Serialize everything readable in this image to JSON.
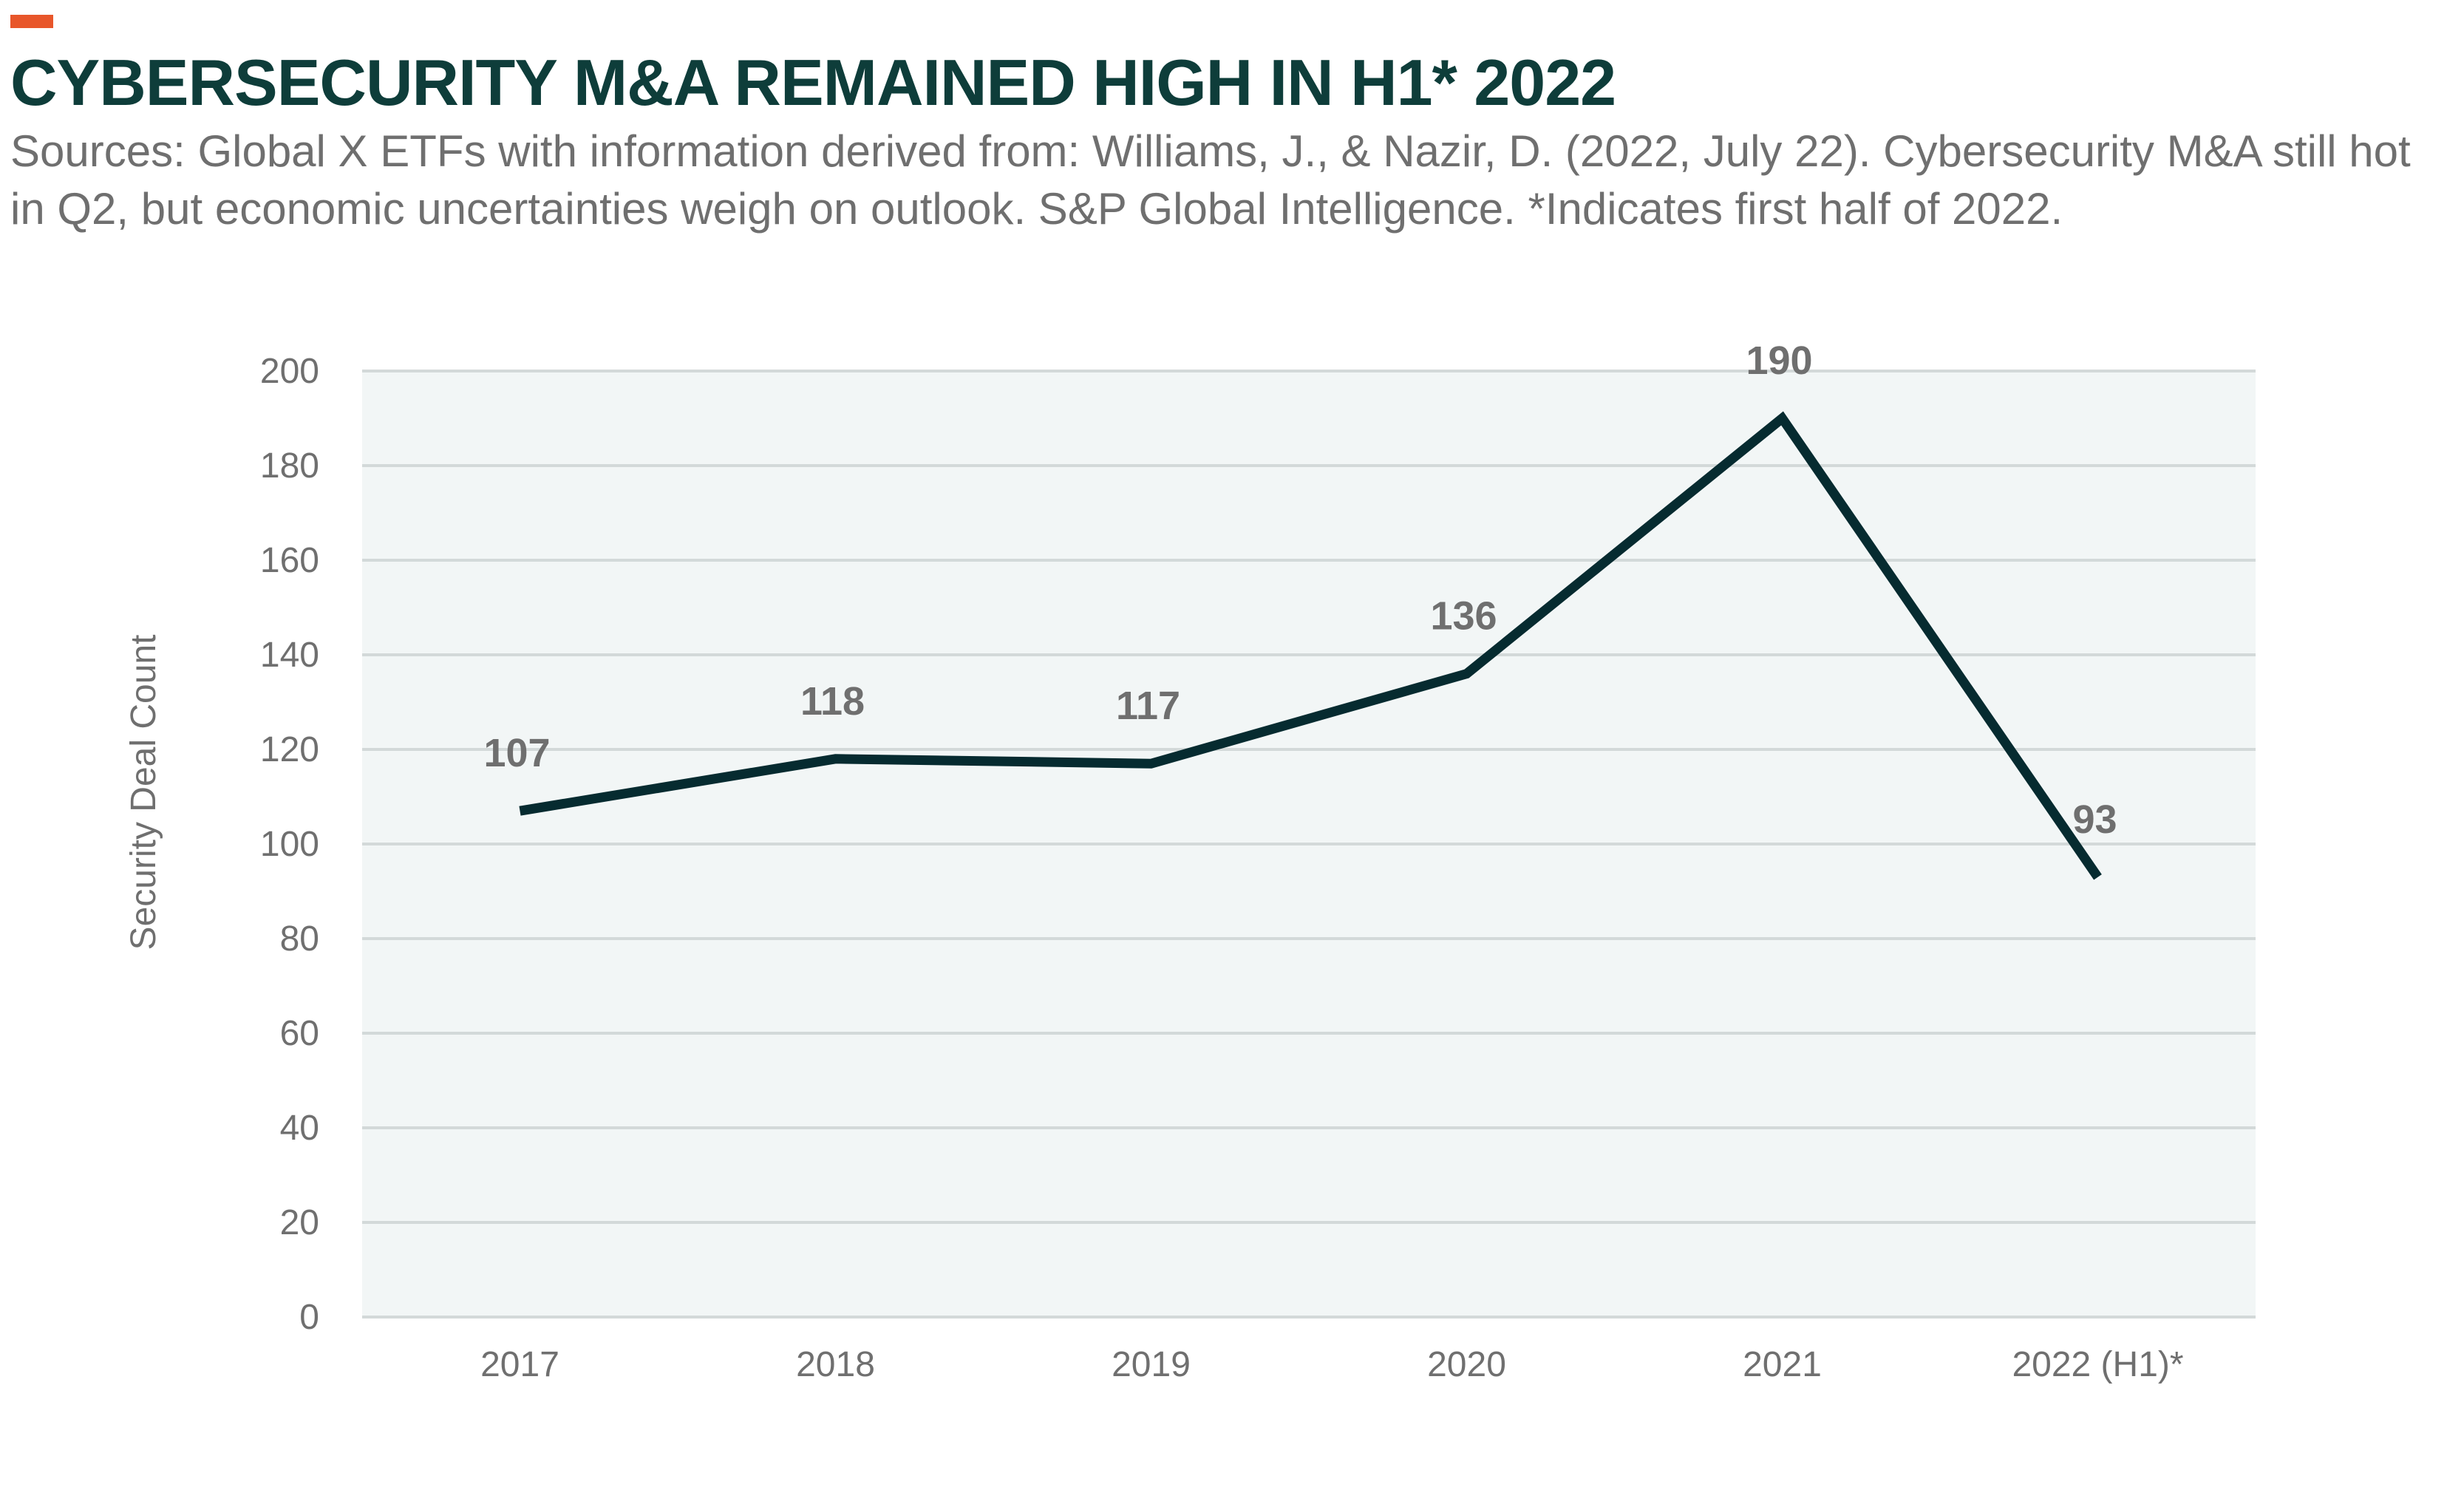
{
  "colors": {
    "accent": "#e8562a",
    "title": "#0e3d3a",
    "line": "#062b30",
    "plot_background": "#f2f6f6",
    "gridline": "#d3d9d9",
    "text_muted": "#6f6f6f"
  },
  "header": {
    "title": "CYBERSECURITY M&A REMAINED HIGH IN H1* 2022",
    "subtitle": "Sources: Global X ETFs with information derived from: Williams, J., & Nazir, D. (2022, July 22). Cybersecurity M&A still hot in Q2, but economic uncertainties weigh on outlook. S&P Global Intelligence. *Indicates first half of 2022."
  },
  "chart_data": {
    "type": "line",
    "categories": [
      "2017",
      "2018",
      "2019",
      "2020",
      "2021",
      "2022 (H1)*"
    ],
    "series": [
      {
        "values": [
          107,
          118,
          117,
          136,
          190,
          93
        ],
        "data_labels": [
          "107",
          "118",
          "117",
          "136",
          "190",
          "93"
        ]
      }
    ],
    "ylabel": "Security Deal Count",
    "xlabel": "",
    "ylim": [
      0,
      200
    ],
    "yticks": [
      0,
      20,
      40,
      60,
      80,
      100,
      120,
      140,
      160,
      180,
      200
    ],
    "grid": true,
    "legend": "none"
  }
}
